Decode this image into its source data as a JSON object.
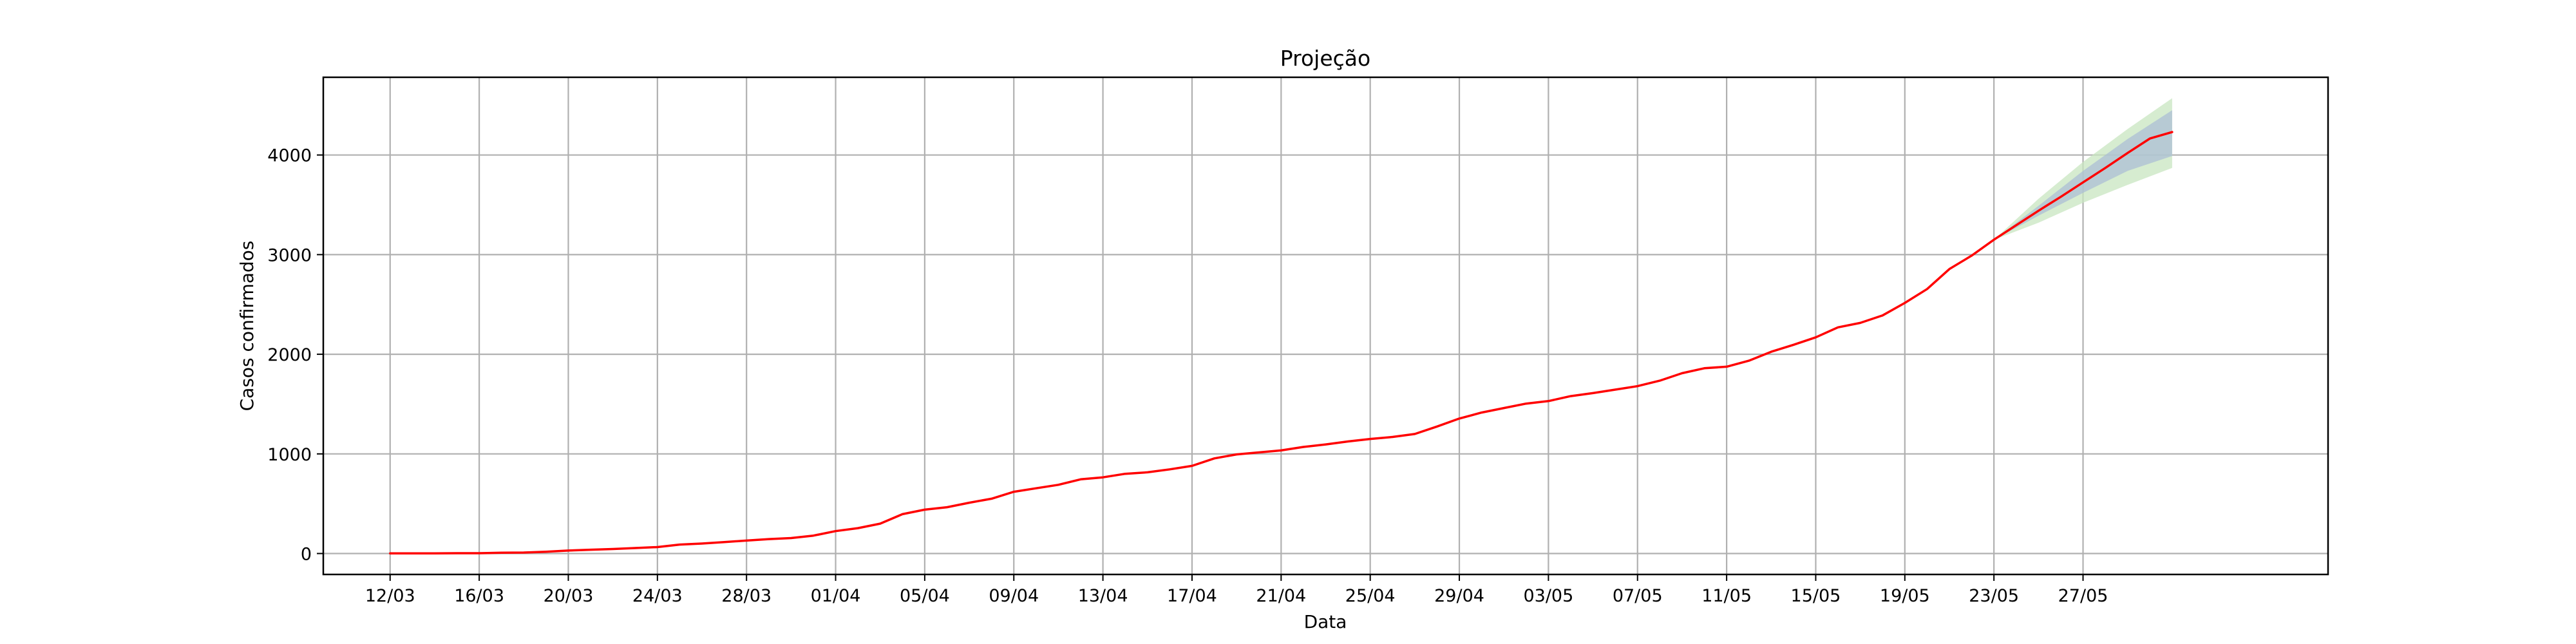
{
  "chart_data": {
    "type": "line",
    "title": "Projeção",
    "xlabel": "Data",
    "ylabel": "Casos confirmados",
    "grid": true,
    "ylim": [
      -210,
      4780
    ],
    "xlim": [
      "2020-03-09",
      "2020-06-07"
    ],
    "y_ticks": [
      0,
      1000,
      2000,
      3000,
      4000
    ],
    "x_ticks": [
      {
        "date": "2020-03-12",
        "label": "12/03"
      },
      {
        "date": "2020-03-16",
        "label": "16/03"
      },
      {
        "date": "2020-03-20",
        "label": "20/03"
      },
      {
        "date": "2020-03-24",
        "label": "24/03"
      },
      {
        "date": "2020-03-28",
        "label": "28/03"
      },
      {
        "date": "2020-04-01",
        "label": "01/04"
      },
      {
        "date": "2020-04-05",
        "label": "05/04"
      },
      {
        "date": "2020-04-09",
        "label": "09/04"
      },
      {
        "date": "2020-04-13",
        "label": "13/04"
      },
      {
        "date": "2020-04-17",
        "label": "17/04"
      },
      {
        "date": "2020-04-21",
        "label": "21/04"
      },
      {
        "date": "2020-04-25",
        "label": "25/04"
      },
      {
        "date": "2020-04-29",
        "label": "29/04"
      },
      {
        "date": "2020-05-03",
        "label": "03/05"
      },
      {
        "date": "2020-05-07",
        "label": "07/05"
      },
      {
        "date": "2020-05-11",
        "label": "11/05"
      },
      {
        "date": "2020-05-15",
        "label": "15/05"
      },
      {
        "date": "2020-05-19",
        "label": "19/05"
      },
      {
        "date": "2020-05-23",
        "label": "23/05"
      },
      {
        "date": "2020-05-27",
        "label": "27/05"
      }
    ],
    "line_color": "#ff0000",
    "band_outer_color": "#c8e6c0",
    "band_inner_color": "#a9bcd6",
    "series": [
      {
        "points": [
          [
            "2020-03-12",
            2
          ],
          [
            "2020-03-13",
            2
          ],
          [
            "2020-03-14",
            2
          ],
          [
            "2020-03-15",
            3
          ],
          [
            "2020-03-16",
            3
          ],
          [
            "2020-03-17",
            8
          ],
          [
            "2020-03-18",
            10
          ],
          [
            "2020-03-19",
            18
          ],
          [
            "2020-03-20",
            30
          ],
          [
            "2020-03-21",
            38
          ],
          [
            "2020-03-22",
            45
          ],
          [
            "2020-03-23",
            55
          ],
          [
            "2020-03-24",
            65
          ],
          [
            "2020-03-25",
            90
          ],
          [
            "2020-03-26",
            100
          ],
          [
            "2020-03-27",
            115
          ],
          [
            "2020-03-28",
            130
          ],
          [
            "2020-03-29",
            145
          ],
          [
            "2020-03-30",
            155
          ],
          [
            "2020-03-31",
            180
          ],
          [
            "2020-04-01",
            225
          ],
          [
            "2020-04-02",
            255
          ],
          [
            "2020-04-03",
            300
          ],
          [
            "2020-04-04",
            395
          ],
          [
            "2020-04-05",
            440
          ],
          [
            "2020-04-06",
            465
          ],
          [
            "2020-04-07",
            510
          ],
          [
            "2020-04-08",
            550
          ],
          [
            "2020-04-09",
            620
          ],
          [
            "2020-04-10",
            655
          ],
          [
            "2020-04-11",
            690
          ],
          [
            "2020-04-12",
            745
          ],
          [
            "2020-04-13",
            765
          ],
          [
            "2020-04-14",
            800
          ],
          [
            "2020-04-15",
            815
          ],
          [
            "2020-04-16",
            845
          ],
          [
            "2020-04-17",
            880
          ],
          [
            "2020-04-18",
            955
          ],
          [
            "2020-04-19",
            995
          ],
          [
            "2020-04-20",
            1015
          ],
          [
            "2020-04-21",
            1035
          ],
          [
            "2020-04-22",
            1070
          ],
          [
            "2020-04-23",
            1095
          ],
          [
            "2020-04-24",
            1125
          ],
          [
            "2020-04-25",
            1150
          ],
          [
            "2020-04-26",
            1170
          ],
          [
            "2020-04-27",
            1200
          ],
          [
            "2020-04-28",
            1275
          ],
          [
            "2020-04-29",
            1355
          ],
          [
            "2020-04-30",
            1415
          ],
          [
            "2020-05-01",
            1460
          ],
          [
            "2020-05-02",
            1505
          ],
          [
            "2020-05-03",
            1530
          ],
          [
            "2020-05-04",
            1580
          ],
          [
            "2020-05-05",
            1610
          ],
          [
            "2020-05-06",
            1645
          ],
          [
            "2020-05-07",
            1680
          ],
          [
            "2020-05-08",
            1735
          ],
          [
            "2020-05-09",
            1810
          ],
          [
            "2020-05-10",
            1860
          ],
          [
            "2020-05-11",
            1875
          ],
          [
            "2020-05-12",
            1935
          ],
          [
            "2020-05-13",
            2025
          ],
          [
            "2020-05-14",
            2095
          ],
          [
            "2020-05-15",
            2170
          ],
          [
            "2020-05-16",
            2270
          ],
          [
            "2020-05-17",
            2315
          ],
          [
            "2020-05-18",
            2390
          ],
          [
            "2020-05-19",
            2515
          ],
          [
            "2020-05-20",
            2655
          ],
          [
            "2020-05-21",
            2855
          ],
          [
            "2020-05-22",
            2990
          ],
          [
            "2020-05-23",
            3150
          ],
          [
            "2020-05-24",
            3295
          ],
          [
            "2020-05-25",
            3440
          ],
          [
            "2020-05-26",
            3580
          ],
          [
            "2020-05-27",
            3725
          ],
          [
            "2020-05-28",
            3870
          ],
          [
            "2020-05-29",
            4020
          ],
          [
            "2020-05-30",
            4165
          ],
          [
            "2020-05-31",
            4230
          ]
        ]
      }
    ],
    "bands": [
      {
        "kind": "outer",
        "points": [
          [
            "2020-05-23",
            3150,
            3150
          ],
          [
            "2020-05-25",
            3320,
            3560
          ],
          [
            "2020-05-27",
            3520,
            3930
          ],
          [
            "2020-05-29",
            3700,
            4260
          ],
          [
            "2020-05-31",
            3870,
            4570
          ]
        ]
      },
      {
        "kind": "inner",
        "points": [
          [
            "2020-05-23",
            3150,
            3150
          ],
          [
            "2020-05-25",
            3390,
            3490
          ],
          [
            "2020-05-27",
            3620,
            3840
          ],
          [
            "2020-05-29",
            3840,
            4160
          ],
          [
            "2020-05-31",
            3990,
            4450
          ]
        ]
      }
    ]
  }
}
